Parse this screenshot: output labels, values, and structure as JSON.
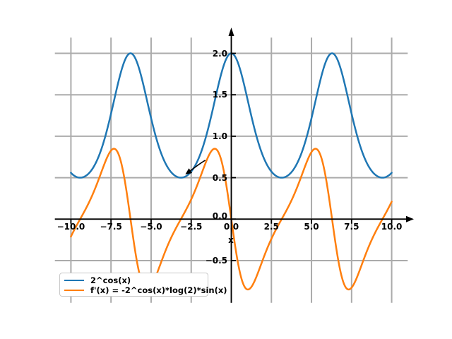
{
  "chart_data": {
    "type": "line",
    "title": "",
    "xlabel": "x",
    "ylabel": "",
    "xlim": [
      -11,
      11
    ],
    "ylim": [
      -1.01,
      2.19
    ],
    "x_ticks": [
      -10.0,
      -7.5,
      -5.0,
      -2.5,
      0.0,
      2.5,
      5.0,
      7.5,
      10.0
    ],
    "x_tick_labels": [
      "−10.0",
      "−7.5",
      "−5.0",
      "−2.5",
      "0.0",
      "2.5",
      "5.0",
      "7.5",
      "10.0"
    ],
    "y_ticks": [
      -0.5,
      0.0,
      0.5,
      1.0,
      1.5,
      2.0
    ],
    "y_tick_labels": [
      "−0.5",
      "0.0",
      "0.5",
      "1.0",
      "1.5",
      "2.0"
    ],
    "grid": true,
    "grid_color": "#ababab",
    "axis_color": "#000000",
    "background": "#ffffff",
    "legend_position": "lower left",
    "x_sample_range": [
      -10,
      10
    ],
    "series": [
      {
        "name": "2^cos(x)",
        "color": "#1f77b4",
        "linewidth": 2.5,
        "js_expr": "Math.pow(2, Math.cos(x))"
      },
      {
        "name": "f'(x) = -2^cos(x)*log(2)*sin(x)",
        "color": "#ff7f0e",
        "linewidth": 2.5,
        "js_expr": "-Math.pow(2, Math.cos(x)) * Math.log(2) * Math.sin(x)"
      }
    ],
    "annotation": {
      "type": "arrow",
      "tip_xy": [
        -2.87,
        0.54
      ],
      "tail_xy": [
        -1.62,
        0.71
      ],
      "color": "#000000"
    }
  },
  "legend": {
    "items": [
      {
        "label": "2^cos(x)",
        "color": "#1f77b4"
      },
      {
        "label": "f'(x) = -2^cos(x)*log(2)*sin(x)",
        "color": "#ff7f0e"
      }
    ]
  }
}
